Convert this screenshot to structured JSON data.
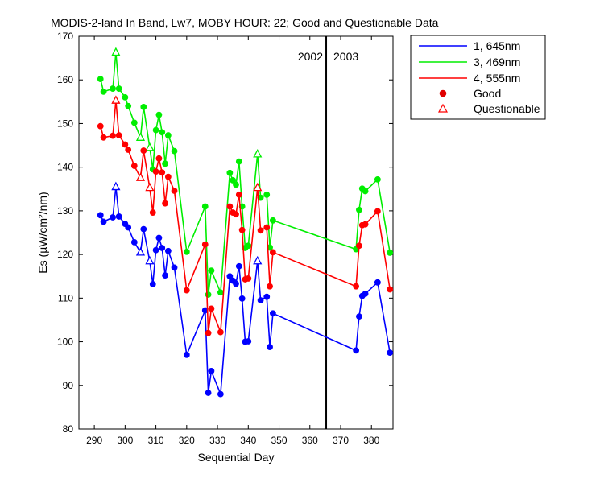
{
  "chart_data": {
    "type": "line",
    "title": "MODIS-2-land In Band,  Lw7, MOBY HOUR: 22;  Good and Questionable Data",
    "xlabel": "Sequential Day",
    "ylabel": "Es (µW/cm²/nm)",
    "xlim": [
      285,
      387
    ],
    "ylim": [
      80,
      170
    ],
    "x_ticks": [
      290,
      300,
      310,
      320,
      330,
      340,
      350,
      360,
      370,
      380
    ],
    "y_ticks": [
      80,
      90,
      100,
      110,
      120,
      130,
      140,
      150,
      160,
      170
    ],
    "grid": false,
    "legend_position": "outside-top-right",
    "year_divider": {
      "x": 365.3,
      "left_label": "2002",
      "right_label": "2003"
    },
    "legend": {
      "series": [
        "1, 645nm",
        "3, 469nm",
        "4, 555nm"
      ],
      "markers": [
        "Good",
        "Questionable"
      ]
    },
    "series": [
      {
        "name": "1, 645nm",
        "color": "#0000ff",
        "x": [
          292,
          293,
          296,
          297,
          298,
          300,
          301,
          303,
          305,
          306,
          308,
          309,
          310,
          311,
          312,
          313,
          314,
          316,
          320,
          326,
          327,
          328,
          331,
          334,
          335,
          336,
          337,
          338,
          339,
          340,
          343,
          344,
          346,
          347,
          348,
          375,
          376,
          377,
          378,
          382,
          386
        ],
        "y": [
          129,
          127.5,
          128.5,
          135.5,
          128.7,
          127,
          126.2,
          122.8,
          120.5,
          125.8,
          118.5,
          113.2,
          121,
          123.8,
          121.5,
          115.2,
          120.8,
          117,
          97,
          107.2,
          88.3,
          93.3,
          88,
          115,
          114,
          113.3,
          117.3,
          109.9,
          100,
          100.1,
          118.5,
          109.5,
          110.3,
          98.8,
          106.5,
          98,
          105.8,
          110.5,
          111,
          113.6,
          97.5
        ],
        "flags": [
          "g",
          "g",
          "g",
          "q",
          "g",
          "g",
          "g",
          "g",
          "q",
          "g",
          "q",
          "g",
          "g",
          "g",
          "g",
          "g",
          "g",
          "g",
          "g",
          "g",
          "g",
          "g",
          "g",
          "g",
          "g",
          "g",
          "g",
          "g",
          "g",
          "g",
          "q",
          "g",
          "g",
          "g",
          "g",
          "g",
          "g",
          "g",
          "g",
          "g",
          "g"
        ]
      },
      {
        "name": "3, 469nm",
        "color": "#00ee00",
        "x": [
          292,
          293,
          296,
          297,
          298,
          300,
          301,
          303,
          305,
          306,
          308,
          309,
          310,
          311,
          312,
          313,
          314,
          316,
          320,
          326,
          327,
          328,
          331,
          334,
          335,
          336,
          337,
          338,
          339,
          340,
          343,
          344,
          346,
          347,
          348,
          375,
          376,
          377,
          378,
          382,
          386
        ],
        "y": [
          160.2,
          157.3,
          158,
          166.3,
          158,
          156,
          154,
          150.2,
          146.8,
          153.8,
          144.5,
          139.5,
          148.5,
          152,
          148,
          140.8,
          147.3,
          143.7,
          120.6,
          131,
          110.8,
          116.3,
          111.3,
          138.7,
          137,
          136,
          141.3,
          131,
          121.5,
          122,
          143,
          133,
          133.7,
          121.6,
          127.8,
          121.2,
          130.2,
          135.1,
          134.5,
          137.2,
          120.4
        ],
        "flags": [
          "g",
          "g",
          "g",
          "q",
          "g",
          "g",
          "g",
          "g",
          "q",
          "g",
          "q",
          "g",
          "g",
          "g",
          "g",
          "g",
          "g",
          "g",
          "g",
          "g",
          "g",
          "g",
          "g",
          "g",
          "g",
          "g",
          "g",
          "g",
          "g",
          "g",
          "q",
          "g",
          "g",
          "g",
          "g",
          "g",
          "g",
          "g",
          "g",
          "g",
          "g"
        ]
      },
      {
        "name": "4, 555nm",
        "color": "#ff0000",
        "x": [
          292,
          293,
          296,
          297,
          298,
          300,
          301,
          303,
          305,
          306,
          308,
          309,
          310,
          311,
          312,
          313,
          314,
          316,
          320,
          326,
          327,
          328,
          331,
          334,
          335,
          336,
          337,
          338,
          339,
          340,
          343,
          344,
          346,
          347,
          348,
          375,
          376,
          377,
          378,
          382,
          386
        ],
        "y": [
          149.4,
          146.8,
          147.2,
          155.3,
          147.3,
          145.2,
          144,
          140.3,
          137.6,
          143.8,
          135.3,
          129.6,
          139,
          142,
          138.8,
          131.7,
          137.8,
          134.6,
          111.8,
          122.3,
          102,
          107.6,
          102.2,
          131,
          129.6,
          129.2,
          133.7,
          125.6,
          114.3,
          114.5,
          135.3,
          125.5,
          126.2,
          112.7,
          120.5,
          112.7,
          122,
          126.7,
          126.9,
          129.9,
          112
        ],
        "flags": [
          "g",
          "g",
          "g",
          "q",
          "g",
          "g",
          "g",
          "g",
          "q",
          "g",
          "q",
          "g",
          "g",
          "g",
          "g",
          "g",
          "g",
          "g",
          "g",
          "g",
          "g",
          "g",
          "g",
          "g",
          "g",
          "g",
          "g",
          "g",
          "g",
          "g",
          "q",
          "g",
          "g",
          "g",
          "g",
          "g",
          "g",
          "g",
          "g",
          "g",
          "g"
        ]
      }
    ]
  }
}
